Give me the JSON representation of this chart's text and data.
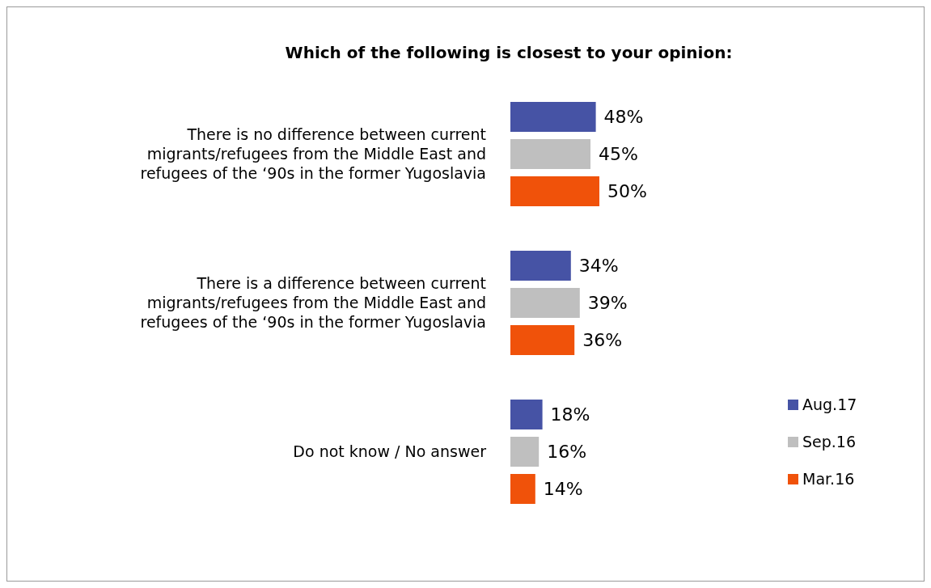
{
  "chart_data": {
    "type": "bar",
    "orientation": "horizontal",
    "title": "Which of the following is closest to your opinion:",
    "categories": [
      "There is no difference between current migrants/refugees from the Middle East and refugees of the ‘90s in the former Yugoslavia",
      "There is a difference between current migrants/refugees from the Middle East and refugees of the ‘90s in the former Yugoslavia",
      "Do not know / No answer"
    ],
    "series": [
      {
        "name": "Aug.17",
        "color": "#4653a5",
        "values": [
          48,
          34,
          18
        ],
        "value_labels": [
          "48%",
          "34%",
          "18%"
        ]
      },
      {
        "name": "Sep.16",
        "color": "#bfbfbf",
        "values": [
          45,
          39,
          16
        ],
        "value_labels": [
          "45%",
          "39%",
          "16%"
        ]
      },
      {
        "name": "Mar.16",
        "color": "#f0520a",
        "values": [
          50,
          36,
          14
        ],
        "value_labels": [
          "50%",
          "36%",
          "14%"
        ]
      }
    ],
    "legend": "right",
    "grid": false
  }
}
